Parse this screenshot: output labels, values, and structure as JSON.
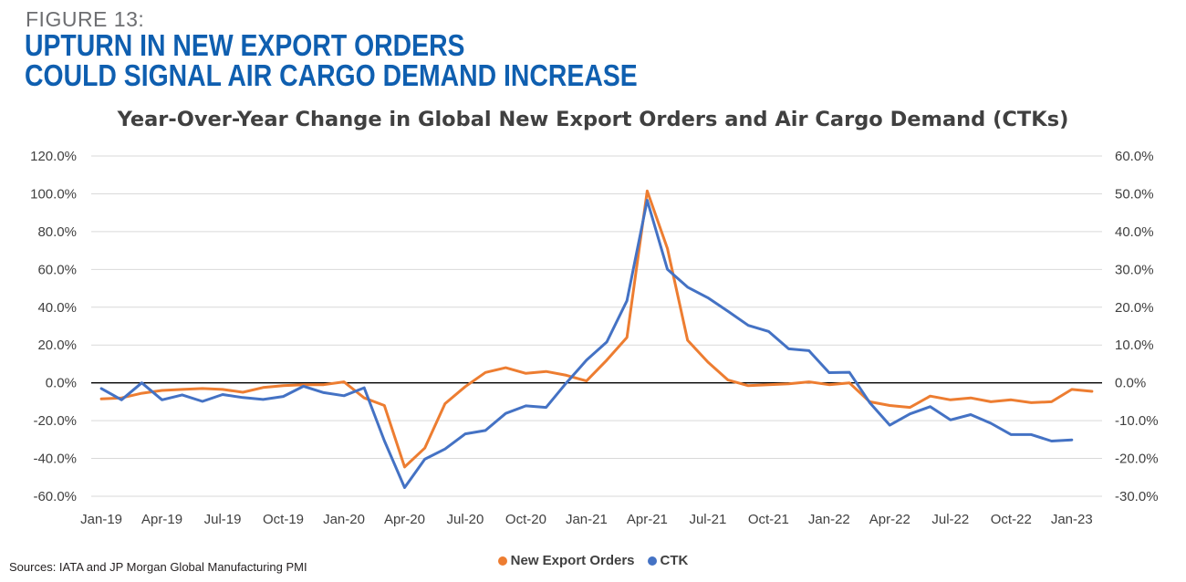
{
  "figure": {
    "label": "FIGURE 13:",
    "title_line1": "UPTURN IN NEW EXPORT ORDERS",
    "title_line2": "COULD SIGNAL AIR CARGO DEMAND INCREASE"
  },
  "source": "Sources: IATA and JP Morgan Global Manufacturing PMI",
  "chart_data": {
    "type": "line",
    "title": "Year-Over-Year Change in Global New Export Orders and Air Cargo Demand (CTKs)",
    "x_tick_labels": [
      "Jan-19",
      "Apr-19",
      "Jul-19",
      "Oct-19",
      "Jan-20",
      "Apr-20",
      "Jul-20",
      "Oct-20",
      "Jan-21",
      "Apr-21",
      "Jul-21",
      "Oct-21",
      "Jan-22",
      "Apr-22",
      "Jul-22",
      "Oct-22",
      "Jan-23"
    ],
    "x_tick_step_months": 3,
    "left_axis": {
      "ylim": [
        -60,
        120
      ],
      "ticks": [
        "-60.0%",
        "-40.0%",
        "-20.0%",
        "0.0%",
        "20.0%",
        "40.0%",
        "60.0%",
        "80.0%",
        "100.0%",
        "120.0%"
      ]
    },
    "right_axis": {
      "ylim": [
        -30,
        60
      ],
      "ticks": [
        "-30.0%",
        "-20.0%",
        "-10.0%",
        "0.0%",
        "10.0%",
        "20.0%",
        "30.0%",
        "40.0%",
        "50.0%",
        "60.0%"
      ]
    },
    "grid": true,
    "legend": "bottom",
    "series": [
      {
        "name": "New Export Orders",
        "axis": "left",
        "color": "#ed7d31",
        "values": [
          -8.5,
          -8,
          -5.5,
          -4,
          -3.5,
          -3,
          -3.5,
          -5,
          -2.5,
          -1.5,
          -1,
          -1,
          0.5,
          -8,
          -12,
          -44.5,
          -34.5,
          -11,
          -2,
          5.5,
          8,
          5,
          6,
          4,
          1,
          12,
          24,
          101.5,
          71,
          22.5,
          11,
          1.5,
          -1.5,
          -1,
          -0.5,
          0.5,
          -1,
          0,
          -10,
          -12,
          -13,
          -7,
          -9,
          -8,
          -10,
          -9,
          -10.5,
          -10,
          -3.5,
          -4.5
        ]
      },
      {
        "name": "CTK",
        "axis": "right",
        "color": "#4472c4",
        "values": [
          -1.5,
          -4.5,
          0,
          -4.5,
          -3.2,
          -4.9,
          -3.1,
          -3.9,
          -4.4,
          -3.6,
          -0.9,
          -2.6,
          -3.4,
          -1.3,
          -15.3,
          -27.7,
          -20.2,
          -17.5,
          -13.5,
          -12.6,
          -8.1,
          -6.1,
          -6.5,
          0,
          6,
          10.8,
          21.7,
          48.3,
          30,
          25.3,
          22.5,
          18.9,
          15.2,
          13.6,
          9,
          8.5,
          2.7,
          2.8,
          -5.2,
          -11.2,
          -8.2,
          -6.3,
          -9.8,
          -8.4,
          -10.7,
          -13.7,
          -13.7,
          -15.4,
          -15.1
        ]
      }
    ]
  }
}
